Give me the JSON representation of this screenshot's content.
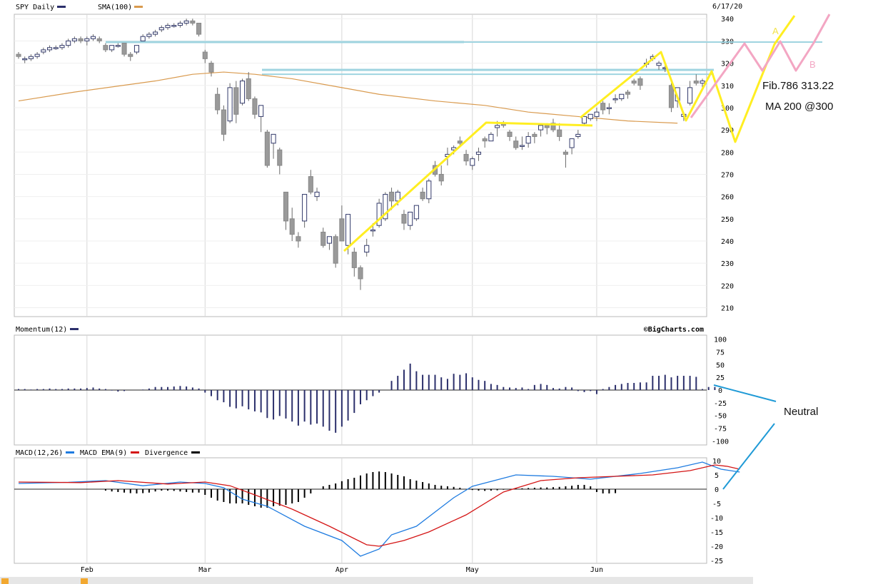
{
  "chart_data": [
    {
      "type": "candlestick",
      "title": "SPY Daily",
      "legend": [
        {
          "name": "SPY Daily",
          "color": "#2b2f6b"
        },
        {
          "name": "SMA(100)",
          "color": "#d99a4e"
        }
      ],
      "date_label": "6/17/20",
      "watermark": "©BigCharts.com",
      "ylim": [
        206,
        342
      ],
      "yticks": [
        210,
        220,
        230,
        240,
        250,
        260,
        270,
        280,
        290,
        300,
        310,
        320,
        330,
        340
      ],
      "months": [
        {
          "label": "Feb",
          "index": 11
        },
        {
          "label": "Mar",
          "index": 30
        },
        {
          "label": "Apr",
          "index": 52
        },
        {
          "label": "May",
          "index": 73
        },
        {
          "label": "Jun",
          "index": 93
        }
      ],
      "candles": [
        [
          324,
          325,
          322,
          323
        ],
        [
          322,
          323,
          320,
          322
        ],
        [
          322,
          324,
          321,
          323
        ],
        [
          323,
          325,
          322,
          324
        ],
        [
          325,
          327,
          324,
          326
        ],
        [
          326,
          328,
          325,
          327
        ],
        [
          327,
          328,
          326,
          327
        ],
        [
          327,
          329,
          326,
          328
        ],
        [
          328,
          331,
          327,
          330
        ],
        [
          330,
          332,
          329,
          331
        ],
        [
          331,
          332,
          329,
          330
        ],
        [
          330,
          332,
          328,
          331
        ],
        [
          331,
          333,
          330,
          332
        ],
        [
          331,
          332,
          329,
          330
        ],
        [
          328,
          329,
          325,
          326
        ],
        [
          326,
          328,
          325,
          328
        ],
        [
          328,
          329,
          327,
          328
        ],
        [
          329,
          329,
          323,
          324
        ],
        [
          324,
          325,
          321,
          323
        ],
        [
          325,
          328,
          324,
          328
        ],
        [
          330,
          333,
          330,
          332
        ],
        [
          332,
          334,
          331,
          333
        ],
        [
          333,
          335,
          332,
          334
        ],
        [
          335,
          337,
          334,
          336
        ],
        [
          336,
          338,
          335,
          337
        ],
        [
          337,
          338,
          336,
          337
        ],
        [
          337,
          339,
          336,
          338
        ],
        [
          338,
          340,
          337,
          339
        ],
        [
          339,
          340,
          337,
          338
        ],
        [
          338,
          338,
          332,
          333
        ],
        [
          325,
          326,
          320,
          322
        ],
        [
          320,
          321,
          314,
          316
        ],
        [
          306,
          309,
          297,
          299
        ],
        [
          299,
          301,
          285,
          288
        ],
        [
          294,
          311,
          293,
          309
        ],
        [
          309,
          312,
          293,
          297
        ],
        [
          302,
          313,
          301,
          312
        ],
        [
          313,
          316,
          303,
          304
        ],
        [
          304,
          305,
          295,
          297
        ],
        [
          296,
          300,
          289,
          301
        ],
        [
          289,
          290,
          273,
          274
        ],
        [
          284,
          288,
          277,
          288
        ],
        [
          281,
          282,
          270,
          274
        ],
        [
          262,
          262,
          245,
          249
        ],
        [
          250,
          255,
          240,
          243
        ],
        [
          242,
          244,
          237,
          240
        ],
        [
          249,
          261,
          246,
          261
        ],
        [
          269,
          272,
          261,
          262
        ],
        [
          260,
          264,
          258,
          262
        ],
        [
          244,
          246,
          237,
          238
        ],
        [
          239,
          242,
          236,
          242
        ],
        [
          242,
          243,
          228,
          230
        ],
        [
          250,
          256,
          240,
          240
        ],
        [
          238,
          251,
          234,
          252
        ],
        [
          235,
          237,
          224,
          228
        ],
        [
          228,
          229,
          218,
          223
        ],
        [
          235,
          241,
          233,
          238
        ],
        [
          245,
          248,
          242,
          245
        ],
        [
          247,
          259,
          246,
          257
        ],
        [
          250,
          262,
          249,
          261
        ],
        [
          262,
          264,
          254,
          258
        ],
        [
          258,
          263,
          256,
          262
        ],
        [
          252,
          254,
          245,
          248
        ],
        [
          247,
          253,
          245,
          253
        ],
        [
          250,
          256,
          249,
          256
        ],
        [
          262,
          264,
          258,
          259
        ],
        [
          259,
          268,
          257,
          267
        ],
        [
          274,
          276,
          269,
          270
        ],
        [
          270,
          274,
          265,
          267
        ],
        [
          278,
          282,
          274,
          279
        ],
        [
          281,
          283,
          279,
          282
        ],
        [
          285,
          287,
          283,
          284
        ],
        [
          279,
          281,
          274,
          276
        ],
        [
          274,
          278,
          272,
          277
        ],
        [
          279,
          282,
          276,
          280
        ],
        [
          286,
          287,
          282,
          285
        ],
        [
          285,
          289,
          285,
          288
        ],
        [
          291,
          294,
          287,
          292
        ],
        [
          293,
          294,
          291,
          292
        ],
        [
          289,
          290,
          285,
          287
        ],
        [
          285,
          287,
          281,
          282
        ],
        [
          283,
          287,
          281,
          283
        ],
        [
          284,
          289,
          282,
          287
        ],
        [
          288,
          289,
          284,
          287
        ],
        [
          290,
          293,
          287,
          292
        ],
        [
          292,
          293,
          288,
          291
        ],
        [
          293,
          295,
          289,
          290
        ],
        [
          290,
          293,
          285,
          287
        ],
        [
          280,
          281,
          273,
          279
        ],
        [
          282,
          285,
          279,
          286
        ],
        [
          287,
          290,
          286,
          288
        ],
        [
          293,
          296,
          292,
          296
        ],
        [
          295,
          297,
          294,
          297
        ],
        [
          296,
          300,
          294,
          298
        ],
        [
          302,
          303,
          297,
          299
        ],
        [
          300,
          302,
          297,
          300
        ],
        [
          304,
          306,
          302,
          304
        ],
        [
          304,
          306,
          303,
          306
        ],
        [
          307,
          308,
          304,
          306
        ],
        [
          312,
          313,
          310,
          311
        ],
        [
          313,
          314,
          308,
          310
        ],
        [
          320,
          322,
          318,
          320
        ],
        [
          322,
          324,
          321,
          323
        ],
        [
          319,
          321,
          317,
          320
        ],
        [
          318,
          319,
          316,
          318
        ],
        [
          310,
          311,
          298,
          300
        ],
        [
          303,
          309,
          300,
          309
        ],
        [
          296,
          298,
          294,
          297
        ],
        [
          302,
          312,
          301,
          309
        ],
        [
          312,
          315,
          310,
          311
        ],
        [
          311,
          313,
          308,
          312
        ]
      ],
      "sma100": [
        [
          0,
          303
        ],
        [
          9,
          307
        ],
        [
          22,
          312
        ],
        [
          28,
          315
        ],
        [
          33,
          316
        ],
        [
          38,
          315
        ],
        [
          44,
          313
        ],
        [
          52,
          309
        ],
        [
          58,
          306
        ],
        [
          67,
          303
        ],
        [
          75,
          301
        ],
        [
          82,
          298
        ],
        [
          90,
          296
        ],
        [
          98,
          294
        ],
        [
          106,
          293
        ]
      ]
    },
    {
      "type": "bar",
      "title": "Momentum(12)",
      "color": "#2b2f6b",
      "ylim": [
        -108,
        108
      ],
      "yticks": [
        100,
        75,
        50,
        25,
        0,
        -25,
        -50,
        -75,
        -100
      ],
      "values": [
        2,
        2,
        1,
        2,
        2,
        3,
        2,
        2,
        3,
        3,
        3,
        4,
        5,
        3,
        2,
        -1,
        -3,
        -2,
        0,
        0,
        1,
        3,
        6,
        6,
        6,
        7,
        8,
        7,
        5,
        3,
        -5,
        -12,
        -20,
        -24,
        -33,
        -36,
        -32,
        -38,
        -42,
        -44,
        -55,
        -58,
        -51,
        -56,
        -62,
        -70,
        -62,
        -68,
        -66,
        -72,
        -80,
        -84,
        -72,
        -60,
        -45,
        -28,
        -20,
        -12,
        -5,
        0,
        18,
        28,
        40,
        52,
        37,
        30,
        30,
        30,
        25,
        22,
        32,
        30,
        33,
        25,
        20,
        18,
        12,
        10,
        6,
        5,
        4,
        5,
        2,
        10,
        12,
        10,
        4,
        3,
        6,
        5,
        -2,
        -4,
        -2,
        -8,
        2,
        6,
        10,
        12,
        14,
        14,
        15,
        15,
        28,
        28,
        30,
        25,
        28,
        28,
        28,
        26,
        2,
        6,
        6
      ]
    },
    {
      "type": "line",
      "title": "MACD(12,26)",
      "legend": [
        {
          "name": "MACD(12,26)",
          "color": "#000000"
        },
        {
          "name": "MACD EMA(9)",
          "color": "#1e7be0"
        },
        {
          "name": "Divergence",
          "color": "#d41515"
        }
      ],
      "legend_extra_swatch": "#000000",
      "ylim": [
        -26,
        11
      ],
      "yticks": [
        10,
        5,
        0,
        -5,
        -10,
        -15,
        -20,
        -25
      ],
      "macd": [
        [
          0,
          2
        ],
        [
          8,
          2.4
        ],
        [
          14,
          3
        ],
        [
          20,
          1.2
        ],
        [
          26,
          2.5
        ],
        [
          30,
          2
        ],
        [
          33,
          0.5
        ],
        [
          36,
          -3.5
        ],
        [
          40,
          -6
        ],
        [
          46,
          -13
        ],
        [
          52,
          -18
        ],
        [
          55,
          -23.5
        ],
        [
          58,
          -21
        ],
        [
          60,
          -16
        ],
        [
          64,
          -13
        ],
        [
          70,
          -3
        ],
        [
          73,
          1
        ],
        [
          80,
          5
        ],
        [
          86,
          4.5
        ],
        [
          92,
          3.5
        ],
        [
          100,
          5.5
        ],
        [
          106,
          7.5
        ],
        [
          110,
          9.5
        ],
        [
          113,
          7
        ],
        [
          116,
          6
        ]
      ],
      "signal": [
        [
          0,
          2.5
        ],
        [
          10,
          2.3
        ],
        [
          16,
          3
        ],
        [
          24,
          1.8
        ],
        [
          30,
          2.5
        ],
        [
          34,
          1.2
        ],
        [
          38,
          -2
        ],
        [
          44,
          -7
        ],
        [
          50,
          -13
        ],
        [
          56,
          -19.5
        ],
        [
          58,
          -20
        ],
        [
          62,
          -18
        ],
        [
          66,
          -15
        ],
        [
          72,
          -9
        ],
        [
          78,
          -1
        ],
        [
          84,
          3
        ],
        [
          90,
          4
        ],
        [
          96,
          4.5
        ],
        [
          102,
          5
        ],
        [
          108,
          6.5
        ],
        [
          112,
          8.5
        ],
        [
          114,
          8
        ],
        [
          116,
          7
        ]
      ],
      "divergence": [
        0,
        0,
        0,
        0,
        0,
        0,
        0,
        0,
        0,
        0,
        0,
        0,
        0,
        0,
        -0.5,
        -0.8,
        -1,
        -1.2,
        -1.4,
        -1.5,
        -1.4,
        -1.2,
        -0.8,
        -0.5,
        -0.5,
        -0.6,
        -0.8,
        -1,
        -1.2,
        -1.2,
        -2,
        -3,
        -4,
        -4.5,
        -5,
        -5,
        -5,
        -5.5,
        -6,
        -6.5,
        -6.5,
        -6,
        -5.8,
        -5.5,
        -5,
        -4.5,
        -3,
        -1.5,
        0,
        1,
        1.5,
        2,
        2.8,
        3.5,
        4,
        4.8,
        5.5,
        6,
        6.2,
        6,
        5.5,
        5,
        4.5,
        3.5,
        3,
        2.5,
        2,
        1.5,
        1.2,
        1,
        0.8,
        0.5,
        0,
        -0.3,
        -0.5,
        -0.6,
        -0.5,
        -0.4,
        -0.2,
        0,
        0.2,
        0.3,
        0.4,
        0.5,
        0.6,
        0.6,
        0.7,
        0.8,
        1,
        1.2,
        1.5,
        1.5,
        1,
        -1,
        -1.5,
        -1.5,
        -1.4
      ]
    }
  ],
  "annotations": [
    {
      "text": "A",
      "color": "#f2e24a"
    },
    {
      "text": "B",
      "color": "#f3a6c3"
    },
    {
      "text": "Fib.786  313.22",
      "color": "#111111"
    },
    {
      "text": "MA 200   @300",
      "color": "#111111"
    },
    {
      "text": "Neutral",
      "color": "#111111"
    }
  ],
  "colors": {
    "bg": "#ffffff",
    "grid": "#d7d7d7",
    "candle": "#9a9a9a",
    "resistance": "#9fd4e0",
    "yellow_path": "#ffee22",
    "pink_path": "#f3a6c3",
    "blue_arrows": "#1f9ad6"
  }
}
